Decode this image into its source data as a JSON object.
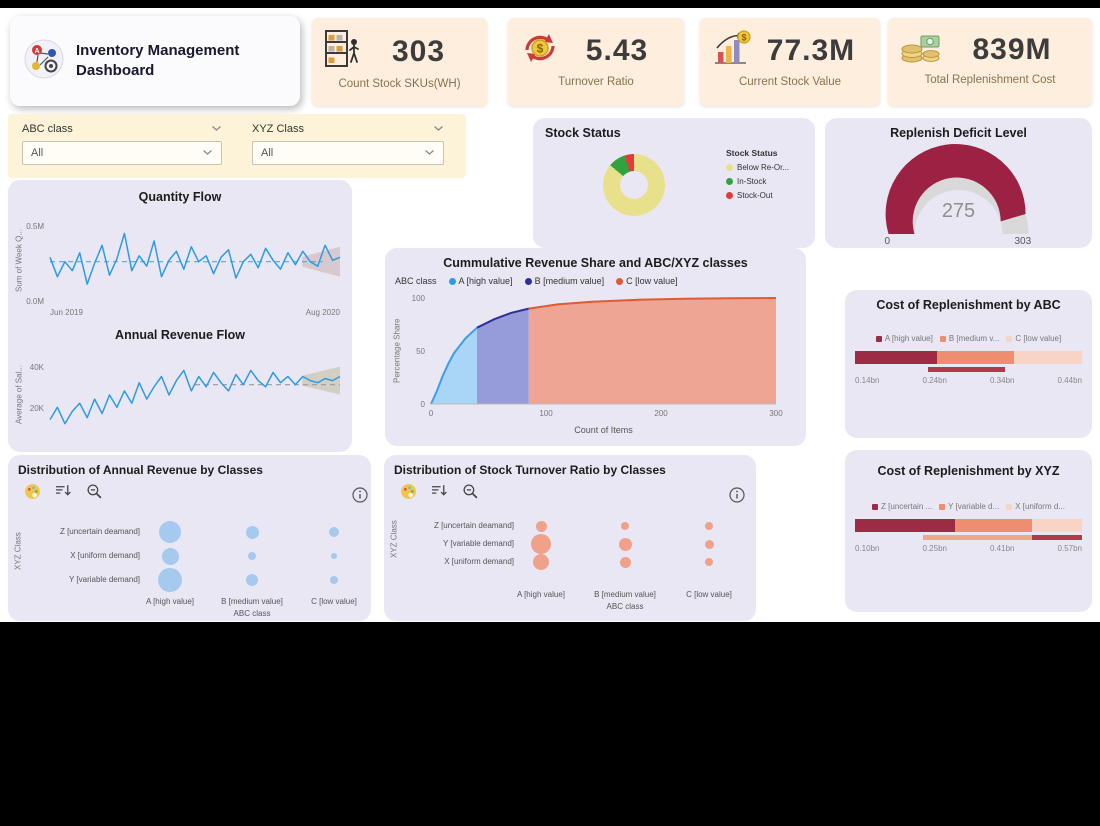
{
  "header": {
    "title": "Inventory Management Dashboard",
    "kpis": [
      {
        "value": "303",
        "label": "Count Stock SKUs(WH)",
        "icon": "shelf-icon"
      },
      {
        "value": "5.43",
        "label": "Turnover Ratio",
        "icon": "turnover-icon"
      },
      {
        "value": "77.3M",
        "label": "Current Stock Value",
        "icon": "stock-value-icon"
      },
      {
        "value": "839M",
        "label": "Total Replenishment Cost",
        "icon": "money-icon"
      }
    ]
  },
  "filters": {
    "abc": {
      "label": "ABC class",
      "value": "All"
    },
    "xyz": {
      "label": "XYZ Class",
      "value": "All"
    }
  },
  "icons": {
    "app-logo-icon": "flow-diagram-badge",
    "shelf-icon": "warehouse-rack-with-person",
    "turnover-icon": "circular-arrows-dollar-coin",
    "stock-value-icon": "bar-chart-with-coin",
    "money-icon": "cash-and-coin-stack",
    "chevron-down-icon": "chevron-down",
    "palette-icon": "palette",
    "sort-icon": "sort-descending",
    "zoom-out-icon": "magnifier-minus",
    "info-icon": "info-circle"
  },
  "colors": {
    "background": "#000000",
    "board": "#ffffff",
    "kpi_card": "#fdeedd",
    "filter_panel": "#fdf3d8",
    "panel": "#e9e7f4",
    "accent_red": "#9b2242",
    "line_blue": "#2e9bde"
  },
  "chart_data": [
    {
      "id": "stock-status",
      "type": "pie",
      "title": "Stock Status",
      "legend_title": "Stock Status",
      "slices": [
        {
          "label": "Below Re-Or...",
          "value": 86,
          "color": "#e9e08c"
        },
        {
          "label": "In-Stock",
          "value": 9,
          "color": "#2fa33c"
        },
        {
          "label": "Stock-Out",
          "value": 5,
          "color": "#e03c3c"
        }
      ]
    },
    {
      "id": "replenish-gauge",
      "type": "gauge",
      "title": "Replenish Deficit Level",
      "value": 275,
      "min": 0,
      "max": 303,
      "color": "#9b2242",
      "track": "#d9d9d9"
    },
    {
      "id": "quantity-flow",
      "type": "line",
      "title": "Quantity Flow",
      "ylabel": "Sum of Week Q...",
      "color": "#2e9bde",
      "ymin": 0,
      "ymax": 0.55,
      "yticks": [
        {
          "label": "0.5M",
          "value": 0.5
        },
        {
          "label": "0.0M",
          "value": 0
        }
      ],
      "xticks": [
        "Jun 2019",
        "Aug 2020"
      ],
      "dash": {
        "value": 0.27,
        "from": 0,
        "to": 0.94,
        "color": "#5aa7e0"
      },
      "cone": {
        "from": 0.87,
        "value": 0.27,
        "h0": 5,
        "h1": 15,
        "color": "#cbb5b5"
      },
      "values": [
        0.3,
        0.17,
        0.27,
        0.21,
        0.33,
        0.12,
        0.26,
        0.38,
        0.18,
        0.29,
        0.46,
        0.21,
        0.31,
        0.24,
        0.41,
        0.17,
        0.28,
        0.34,
        0.22,
        0.37,
        0.27,
        0.31,
        0.19,
        0.3,
        0.35,
        0.16,
        0.27,
        0.32,
        0.23,
        0.36,
        0.28,
        0.22,
        0.33,
        0.25,
        0.34,
        0.27,
        0.24,
        0.38,
        0.28,
        0.3
      ]
    },
    {
      "id": "annual-revenue-flow",
      "type": "line",
      "title": "Annual Revenue Flow",
      "ylabel": "Average of Sal...",
      "color": "#2e9bde",
      "ymin": 8,
      "ymax": 46,
      "yticks": [
        {
          "label": "40K",
          "value": 40
        },
        {
          "label": "20K",
          "value": 20
        }
      ],
      "dash": {
        "value": 32,
        "from": 0.5,
        "to": 1,
        "color": "#9a9a9a"
      },
      "cone": {
        "from": 0.87,
        "value": 34,
        "h0": 5,
        "h1": 14,
        "color": "#c6bfa4"
      },
      "values": [
        15,
        21,
        13,
        19,
        23,
        16,
        25,
        18,
        27,
        21,
        29,
        23,
        33,
        25,
        31,
        36,
        27,
        34,
        39,
        29,
        36,
        31,
        38,
        33,
        29,
        37,
        32,
        39,
        34,
        31,
        38,
        33,
        36,
        32,
        36,
        34,
        33,
        35,
        34,
        36
      ]
    },
    {
      "id": "cumulative-share",
      "type": "area",
      "title": "Cummulative Revenue Share and ABC/XYZ classes",
      "legend_label": "ABC class",
      "series_legend": [
        {
          "label": "A [high value]",
          "color": "#2e9be5"
        },
        {
          "label": "B [medium value]",
          "color": "#2d2f9b"
        },
        {
          "label": "C [low value]",
          "color": "#e05a35"
        }
      ],
      "x": [
        0,
        5,
        10,
        15,
        20,
        30,
        40,
        55,
        70,
        85,
        110,
        140,
        180,
        220,
        260,
        300
      ],
      "y": [
        0,
        12,
        26,
        38,
        48,
        62,
        72,
        80,
        86,
        90,
        94,
        96.5,
        98.3,
        99.2,
        99.7,
        100
      ],
      "regions": [
        {
          "from": 0,
          "to": 40,
          "fill": "#a9d5f6",
          "stroke": "#3f9ce8"
        },
        {
          "from": 40,
          "to": 85,
          "fill": "#959cd9",
          "stroke": "#2d2f9b"
        },
        {
          "from": 85,
          "to": 300,
          "fill": "#efa593",
          "stroke": "#e05a35"
        }
      ],
      "xlim": [
        0,
        300
      ],
      "ylim": [
        0,
        100
      ],
      "xticks": [
        0,
        100,
        200,
        300
      ],
      "yticks": [
        0,
        50,
        100
      ],
      "xlabel": "Count of Items",
      "ylabel": "Percentage Share"
    },
    {
      "id": "cost-abc",
      "type": "stacked-bar",
      "title": "Cost of Replenishment by ABC",
      "legend": [
        {
          "label": "A [high value]",
          "color": "#9c2b43"
        },
        {
          "label": "B [medium v...",
          "color": "#ee8e6f"
        },
        {
          "label": "C [low value]",
          "color": "#f7d4c3"
        }
      ],
      "segments": [
        36,
        34,
        30
      ],
      "sub_segments": [
        {
          "start": 32,
          "end": 66,
          "color": "#b03a49"
        }
      ],
      "ticks": [
        "0.14bn",
        "0.24bn",
        "0.34bn",
        "0.44bn"
      ]
    },
    {
      "id": "cost-xyz",
      "type": "stacked-bar",
      "title": "Cost of Replenishment by XYZ",
      "legend": [
        {
          "label": "Z [uncertain ...",
          "color": "#9c2b43"
        },
        {
          "label": "Y [variable d...",
          "color": "#ee8e6f"
        },
        {
          "label": "X [uniform d...",
          "color": "#f7d4c3"
        }
      ],
      "segments": [
        44,
        34,
        22
      ],
      "sub_segments": [
        {
          "start": 30,
          "end": 78,
          "color": "#f0a58c"
        },
        {
          "start": 78,
          "end": 100,
          "color": "#b03a49"
        }
      ],
      "ticks": [
        "0.10bn",
        "0.25bn",
        "0.41bn",
        "0.57bn"
      ]
    },
    {
      "id": "bubble-revenue",
      "type": "bubble",
      "title": "Distribution of Annual Revenue by Classes",
      "rows": [
        "Z [uncertain deamand]",
        "X [uniform demand]",
        "Y [variable demand]"
      ],
      "cols": [
        "A [high value]",
        "B [medium value]",
        "C [low value]"
      ],
      "xlabel": "ABC class",
      "ylabel": "XYZ Class",
      "color": "#a6c9ef",
      "sizes": [
        [
          22,
          13,
          10
        ],
        [
          17,
          8,
          6
        ],
        [
          24,
          12,
          8
        ]
      ],
      "layout": {
        "row_start": 77,
        "row_gap": 24,
        "label_right": 132,
        "col_start": 162,
        "col_gap": 82,
        "col_label_y": 142
      }
    },
    {
      "id": "bubble-turnover",
      "type": "bubble",
      "title": "Distribution of Stock Turnover Ratio by Classes",
      "rows": [
        "Z [uncertain deamand]",
        "Y [variable demand]",
        "X [uniform demand]"
      ],
      "cols": [
        "A [high value]",
        "B [medium value]",
        "C [low value]"
      ],
      "xlabel": "ABC class",
      "ylabel": "XYZ Class",
      "color": "#f0a18a",
      "sizes": [
        [
          11,
          8,
          8
        ],
        [
          20,
          13,
          9
        ],
        [
          16,
          11,
          8
        ]
      ],
      "layout": {
        "row_start": 71,
        "row_gap": 18,
        "label_right": 130,
        "col_start": 157,
        "col_gap": 84,
        "col_label_y": 135
      }
    }
  ]
}
